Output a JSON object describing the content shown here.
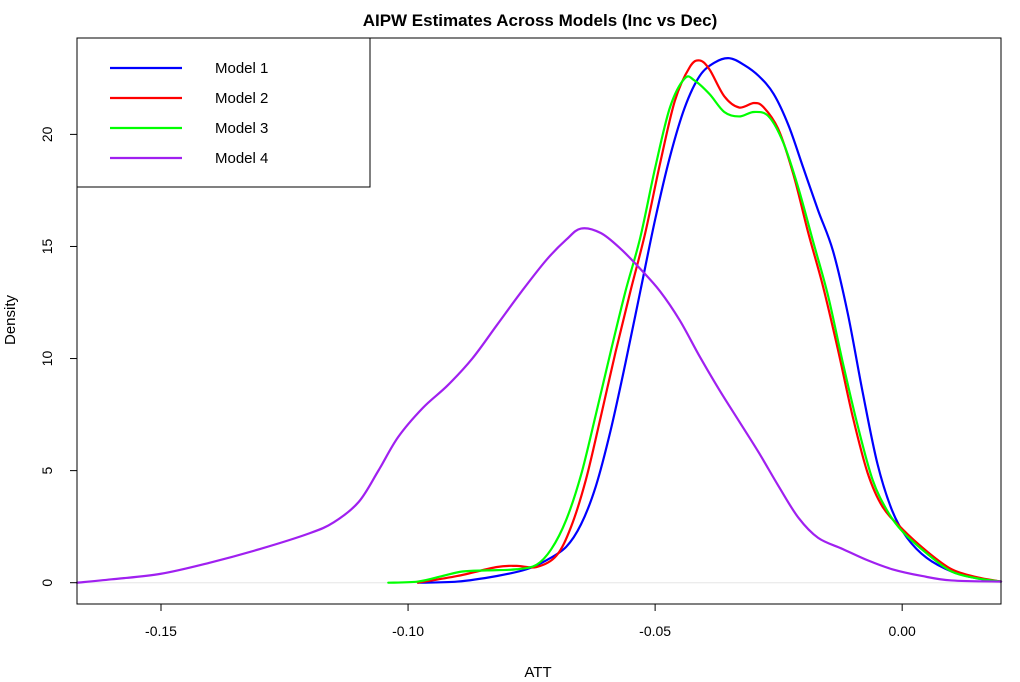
{
  "chart_data": {
    "type": "line",
    "title": "AIPW Estimates Across Models (Inc vs Dec)",
    "xlabel": "ATT",
    "ylabel": "Density",
    "xlim": [
      -0.167,
      0.02
    ],
    "ylim": [
      -0.95,
      24.3
    ],
    "xticks": [
      -0.15,
      -0.1,
      -0.05,
      0.0
    ],
    "xtick_labels": [
      "-0.15",
      "-0.10",
      "-0.05",
      "0.00"
    ],
    "yticks": [
      0,
      5,
      10,
      15,
      20
    ],
    "ytick_labels": [
      "0",
      "5",
      "10",
      "15",
      "20"
    ],
    "baseline_y": 0,
    "grid": false,
    "legend_position": "top-left",
    "series": [
      {
        "name": "Model 1",
        "color": "#0000ff",
        "points": [
          [
            -0.098,
            0.0
          ],
          [
            -0.09,
            0.05
          ],
          [
            -0.082,
            0.3
          ],
          [
            -0.076,
            0.6
          ],
          [
            -0.072,
            1.0
          ],
          [
            -0.068,
            1.6
          ],
          [
            -0.065,
            2.6
          ],
          [
            -0.062,
            4.3
          ],
          [
            -0.059,
            6.8
          ],
          [
            -0.056,
            9.8
          ],
          [
            -0.053,
            13.0
          ],
          [
            -0.05,
            16.2
          ],
          [
            -0.047,
            19.0
          ],
          [
            -0.044,
            21.2
          ],
          [
            -0.041,
            22.6
          ],
          [
            -0.038,
            23.2
          ],
          [
            -0.035,
            23.4
          ],
          [
            -0.032,
            23.1
          ],
          [
            -0.029,
            22.6
          ],
          [
            -0.026,
            21.8
          ],
          [
            -0.023,
            20.4
          ],
          [
            -0.02,
            18.5
          ],
          [
            -0.017,
            16.6
          ],
          [
            -0.014,
            14.8
          ],
          [
            -0.011,
            12.0
          ],
          [
            -0.008,
            8.5
          ],
          [
            -0.005,
            5.3
          ],
          [
            -0.002,
            3.2
          ],
          [
            0.001,
            2.0
          ],
          [
            0.005,
            1.1
          ],
          [
            0.01,
            0.5
          ],
          [
            0.015,
            0.2
          ],
          [
            0.02,
            0.05
          ]
        ]
      },
      {
        "name": "Model 2",
        "color": "#ff0000",
        "points": [
          [
            -0.098,
            0.0
          ],
          [
            -0.09,
            0.3
          ],
          [
            -0.082,
            0.7
          ],
          [
            -0.078,
            0.75
          ],
          [
            -0.074,
            0.7
          ],
          [
            -0.07,
            1.2
          ],
          [
            -0.067,
            2.5
          ],
          [
            -0.064,
            4.6
          ],
          [
            -0.061,
            7.4
          ],
          [
            -0.058,
            10.3
          ],
          [
            -0.055,
            13.0
          ],
          [
            -0.052,
            15.6
          ],
          [
            -0.049,
            18.7
          ],
          [
            -0.046,
            21.5
          ],
          [
            -0.043,
            23.0
          ],
          [
            -0.041,
            23.3
          ],
          [
            -0.039,
            22.9
          ],
          [
            -0.036,
            21.7
          ],
          [
            -0.033,
            21.2
          ],
          [
            -0.03,
            21.4
          ],
          [
            -0.028,
            21.2
          ],
          [
            -0.025,
            20.2
          ],
          [
            -0.022,
            18.2
          ],
          [
            -0.019,
            15.6
          ],
          [
            -0.016,
            13.2
          ],
          [
            -0.013,
            10.4
          ],
          [
            -0.01,
            7.4
          ],
          [
            -0.007,
            4.9
          ],
          [
            -0.004,
            3.4
          ],
          [
            0.0,
            2.4
          ],
          [
            0.005,
            1.4
          ],
          [
            0.01,
            0.6
          ],
          [
            0.015,
            0.25
          ],
          [
            0.02,
            0.05
          ]
        ]
      },
      {
        "name": "Model 3",
        "color": "#00ff00",
        "points": [
          [
            -0.104,
            0.0
          ],
          [
            -0.098,
            0.05
          ],
          [
            -0.093,
            0.3
          ],
          [
            -0.089,
            0.5
          ],
          [
            -0.084,
            0.55
          ],
          [
            -0.078,
            0.6
          ],
          [
            -0.074,
            0.8
          ],
          [
            -0.071,
            1.5
          ],
          [
            -0.068,
            2.8
          ],
          [
            -0.065,
            4.8
          ],
          [
            -0.062,
            7.5
          ],
          [
            -0.059,
            10.3
          ],
          [
            -0.056,
            13.0
          ],
          [
            -0.053,
            15.4
          ],
          [
            -0.05,
            18.5
          ],
          [
            -0.047,
            21.2
          ],
          [
            -0.044,
            22.5
          ],
          [
            -0.042,
            22.4
          ],
          [
            -0.039,
            21.8
          ],
          [
            -0.036,
            21.0
          ],
          [
            -0.033,
            20.8
          ],
          [
            -0.03,
            21.0
          ],
          [
            -0.027,
            20.8
          ],
          [
            -0.024,
            19.6
          ],
          [
            -0.021,
            17.6
          ],
          [
            -0.018,
            15.2
          ],
          [
            -0.015,
            12.8
          ],
          [
            -0.012,
            9.8
          ],
          [
            -0.009,
            7.0
          ],
          [
            -0.006,
            4.6
          ],
          [
            -0.003,
            3.2
          ],
          [
            0.0,
            2.3
          ],
          [
            0.005,
            1.3
          ],
          [
            0.01,
            0.5
          ],
          [
            0.015,
            0.2
          ],
          [
            0.02,
            0.05
          ]
        ]
      },
      {
        "name": "Model 4",
        "color": "#a020f0",
        "points": [
          [
            -0.167,
            0.0
          ],
          [
            -0.16,
            0.15
          ],
          [
            -0.15,
            0.4
          ],
          [
            -0.14,
            0.9
          ],
          [
            -0.13,
            1.5
          ],
          [
            -0.12,
            2.2
          ],
          [
            -0.115,
            2.7
          ],
          [
            -0.11,
            3.6
          ],
          [
            -0.106,
            5.0
          ],
          [
            -0.102,
            6.5
          ],
          [
            -0.097,
            7.8
          ],
          [
            -0.092,
            8.8
          ],
          [
            -0.087,
            10.0
          ],
          [
            -0.082,
            11.5
          ],
          [
            -0.077,
            13.0
          ],
          [
            -0.072,
            14.4
          ],
          [
            -0.068,
            15.3
          ],
          [
            -0.065,
            15.8
          ],
          [
            -0.061,
            15.6
          ],
          [
            -0.057,
            14.9
          ],
          [
            -0.053,
            14.0
          ],
          [
            -0.049,
            13.0
          ],
          [
            -0.045,
            11.7
          ],
          [
            -0.041,
            10.1
          ],
          [
            -0.037,
            8.6
          ],
          [
            -0.033,
            7.2
          ],
          [
            -0.029,
            5.8
          ],
          [
            -0.025,
            4.3
          ],
          [
            -0.021,
            2.9
          ],
          [
            -0.017,
            2.0
          ],
          [
            -0.012,
            1.5
          ],
          [
            -0.007,
            1.0
          ],
          [
            -0.002,
            0.6
          ],
          [
            0.004,
            0.3
          ],
          [
            0.01,
            0.1
          ],
          [
            0.02,
            0.05
          ]
        ]
      }
    ]
  }
}
